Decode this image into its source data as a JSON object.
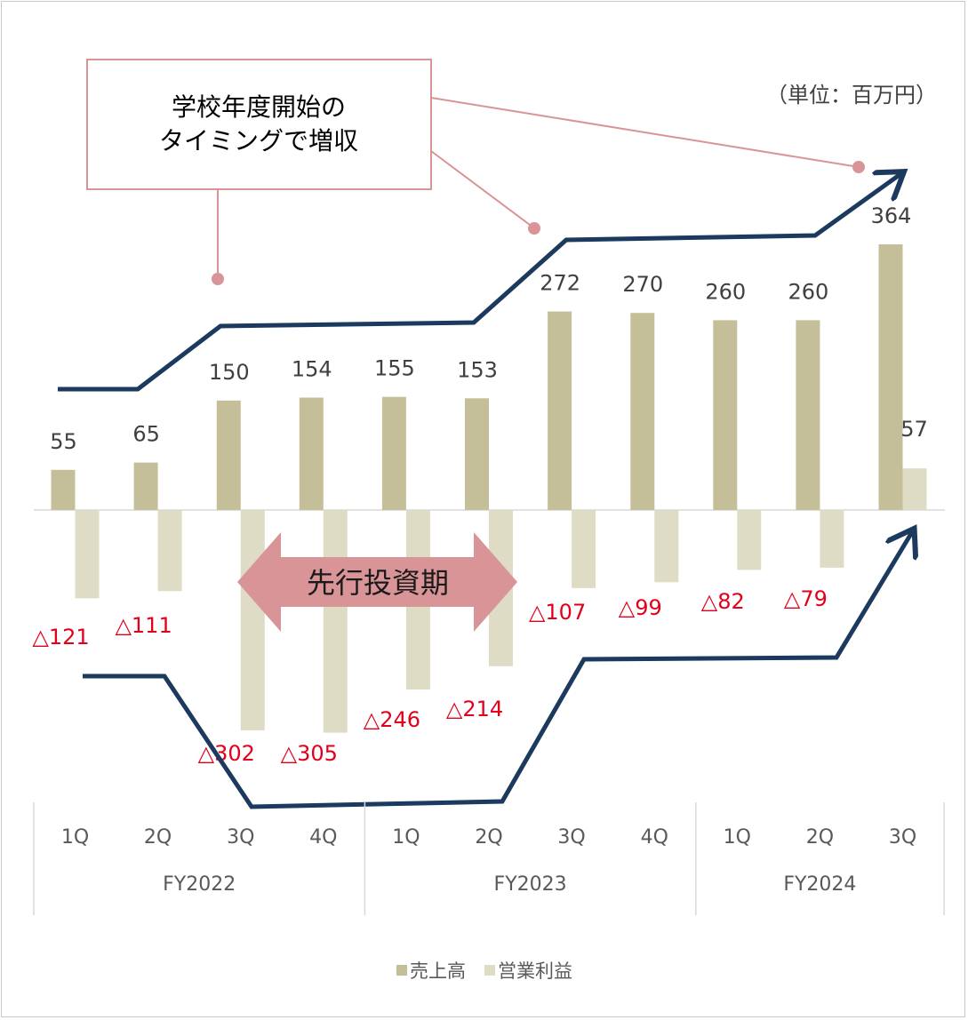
{
  "unit_note": "（単位：百万円）",
  "callouts": {
    "timing": {
      "line1": "学校年度開始の",
      "line2": "タイミングで増収"
    },
    "investment": "先行投資期"
  },
  "colors": {
    "sales": "#c4bf98",
    "operating_profit": "#dedcc4",
    "negative_label": "#e3001b",
    "positive_label": "#404040",
    "trend_arrow": "#1b3a5e",
    "callout": "#d99497",
    "investment_arrow": "#d99497"
  },
  "chart_data": {
    "type": "bar",
    "categories": [
      "1Q",
      "2Q",
      "3Q",
      "4Q",
      "1Q",
      "2Q",
      "3Q",
      "4Q",
      "1Q",
      "2Q",
      "3Q"
    ],
    "groups": [
      {
        "label": "FY2022",
        "count": 4
      },
      {
        "label": "FY2023",
        "count": 4
      },
      {
        "label": "FY2024",
        "count": 3
      }
    ],
    "series": [
      {
        "name": "売上高",
        "values": [
          55,
          65,
          150,
          154,
          155,
          153,
          272,
          270,
          260,
          260,
          364
        ],
        "labels": [
          "55",
          "65",
          "150",
          "154",
          "155",
          "153",
          "272",
          "270",
          "260",
          "260",
          "364"
        ]
      },
      {
        "name": "営業利益",
        "values": [
          -121,
          -111,
          -302,
          -305,
          -246,
          -214,
          -107,
          -99,
          -82,
          -79,
          57
        ],
        "labels": [
          "△121",
          "△111",
          "△302",
          "△305",
          "△246",
          "△214",
          "△107",
          "△99",
          "△82",
          "△79",
          "57"
        ]
      }
    ],
    "legend_position": "bottom",
    "grid": false
  }
}
